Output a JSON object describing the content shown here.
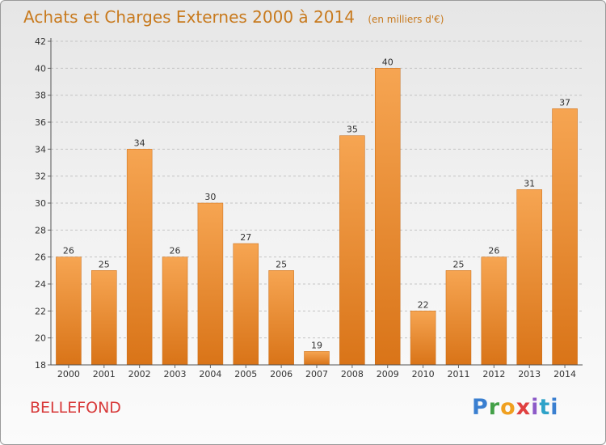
{
  "header": {
    "title": "Achats et Charges Externes 2000 à 2014",
    "unit": "(en milliers d'€)"
  },
  "place": "BELLEFOND",
  "brand": "Proxiti",
  "colors": {
    "bar_light": "#f6a552",
    "bar_dark": "#d97418",
    "title": "#c87a1e",
    "place": "#d83a3a"
  },
  "chart_data": {
    "type": "bar",
    "title": "Achats et Charges Externes 2000 à 2014",
    "subtitle": "(en milliers d'€)",
    "categories": [
      "2000",
      "2001",
      "2002",
      "2003",
      "2004",
      "2005",
      "2006",
      "2007",
      "2008",
      "2009",
      "2010",
      "2011",
      "2012",
      "2013",
      "2014"
    ],
    "values": [
      26,
      25,
      34,
      26,
      30,
      27,
      25,
      19,
      35,
      40,
      22,
      25,
      26,
      31,
      37
    ],
    "ylim": [
      18,
      42
    ],
    "yticks": [
      18,
      20,
      22,
      24,
      26,
      28,
      30,
      32,
      34,
      36,
      38,
      40,
      42
    ],
    "grid": "horizontal-dashed",
    "legend": "none"
  }
}
